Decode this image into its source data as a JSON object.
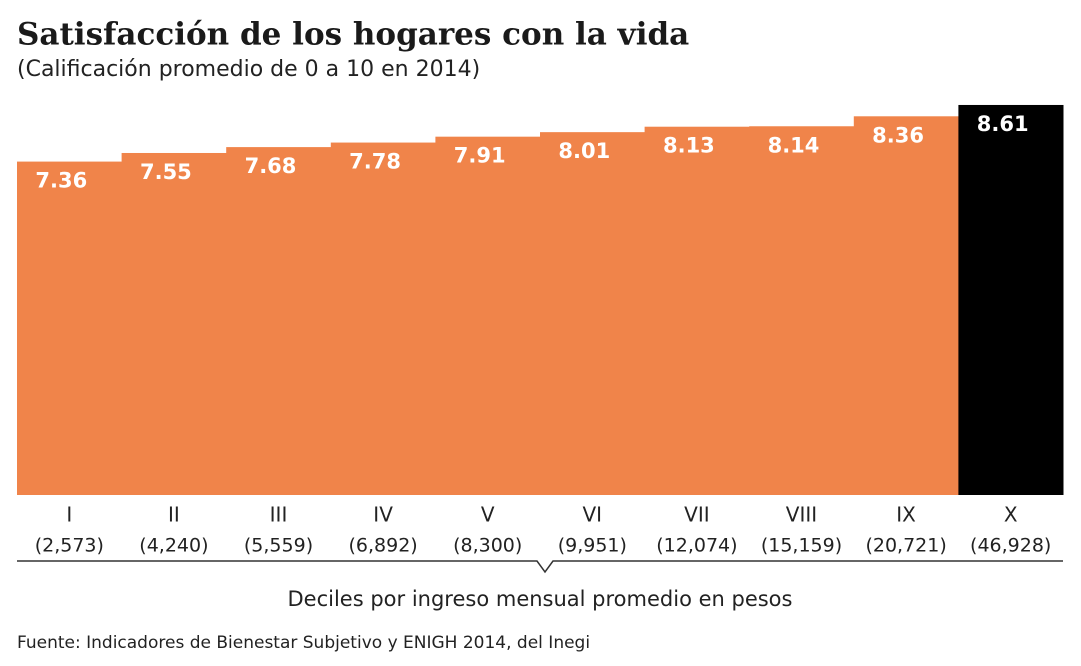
{
  "chart_data": {
    "type": "bar",
    "title": "Satisfacción de los hogares con la vida",
    "subtitle": "(Calificación promedio de 0 a 10 en 2014)",
    "categories": [
      "I",
      "II",
      "III",
      "IV",
      "V",
      "VI",
      "VII",
      "VIII",
      "IX",
      "X"
    ],
    "category_notes": [
      "(2,573)",
      "(4,240)",
      "(5,559)",
      "(6,892)",
      "(8,300)",
      "(9,951)",
      "(12,074)",
      "(15,159)",
      "(20,721)",
      "(46,928)"
    ],
    "values": [
      7.36,
      7.55,
      7.68,
      7.78,
      7.91,
      8.01,
      8.13,
      8.14,
      8.36,
      8.61
    ],
    "colors": [
      "#f0844a",
      "#f0844a",
      "#f0844a",
      "#f0844a",
      "#f0844a",
      "#f0844a",
      "#f0844a",
      "#f0844a",
      "#f0844a",
      "#000000"
    ],
    "ylim": [
      0,
      10
    ],
    "x_label": "Deciles por ingreso mensual promedio en pesos",
    "source": "Fuente: Indicadores de Bienestar Subjetivo y ENIGH 2014, del Inegi"
  }
}
